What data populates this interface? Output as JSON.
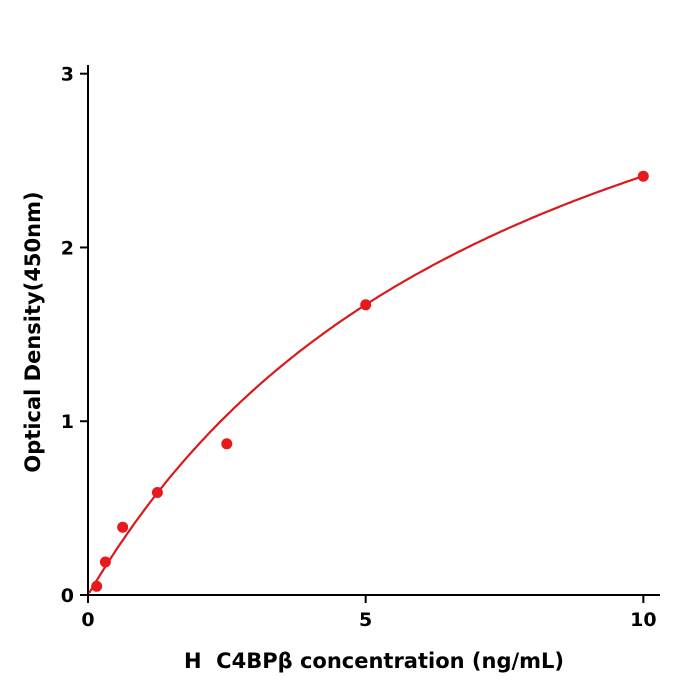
{
  "figure": {
    "background": "#ffffff",
    "axis_color": "#000000"
  },
  "chart_data": {
    "type": "scatter",
    "title": "",
    "xlabel": "H  C4BPβ concentration (ng/mL)",
    "ylabel": "Optical Density(450nm)",
    "x": [
      0.156,
      0.3125,
      0.625,
      1.25,
      2.5,
      5,
      10
    ],
    "y": [
      0.05,
      0.19,
      0.39,
      0.59,
      0.87,
      1.67,
      2.41
    ],
    "x_ticks": [
      0,
      5,
      10
    ],
    "y_ticks": [
      0,
      1,
      2,
      3
    ],
    "xlim": [
      0,
      10.3
    ],
    "ylim": [
      0,
      3.05
    ],
    "grid": false,
    "legend": "none",
    "marker_color": "#e8191d",
    "line_color": "#d91a1c",
    "fit": {
      "type": "hyperbolic",
      "a": 4.33,
      "b": 7.96
    }
  }
}
